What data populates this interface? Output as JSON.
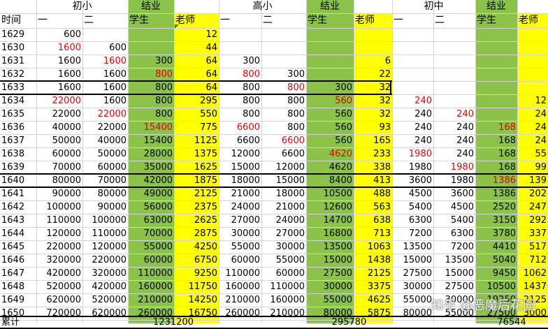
{
  "watermark": "知乎 @恶魔后花园",
  "colors": {
    "green": "#8bc34a",
    "yellow": "#ffff00",
    "red": "#e00000",
    "grid": "#d4d4d4"
  },
  "header_row1": [
    "",
    "初小",
    "",
    "结业",
    "",
    "",
    "高小",
    "",
    "结业",
    "",
    "",
    "初中",
    "",
    "结业",
    ""
  ],
  "header_row2": [
    "时间",
    "一",
    "二",
    "学生",
    "老师",
    "一",
    "二",
    "学生",
    "老师",
    "一",
    "二",
    "学生",
    "老师"
  ],
  "rows": [
    {
      "year": "1629",
      "c": [
        "600",
        "",
        "",
        "12",
        "",
        "",
        "",
        "",
        "",
        "",
        "",
        ""
      ]
    },
    {
      "year": "1630",
      "c": [
        "1600",
        "600",
        "",
        "44",
        "",
        "",
        "",
        "",
        "",
        "",
        "",
        ""
      ]
    },
    {
      "year": "1631",
      "c": [
        "1600",
        "1600",
        "300",
        "64",
        "300",
        "",
        "",
        "6",
        "",
        "",
        "",
        ""
      ]
    },
    {
      "year": "1632",
      "c": [
        "1600",
        "1600",
        "800",
        "64",
        "800",
        "300",
        "",
        "22",
        "",
        "",
        "",
        ""
      ]
    },
    {
      "year": "1633",
      "c": [
        "1600",
        "1600",
        "800",
        "64",
        "800",
        "800",
        "300",
        "32",
        "",
        "",
        "",
        ""
      ]
    },
    {
      "year": "1634",
      "c": [
        "22000",
        "1600",
        "800",
        "295",
        "800",
        "800",
        "560",
        "32",
        "240",
        "",
        "",
        "12"
      ]
    },
    {
      "year": "1635",
      "c": [
        "22000",
        "22000",
        "800",
        "550",
        "800",
        "800",
        "560",
        "32",
        "240",
        "240",
        "",
        "24"
      ]
    },
    {
      "year": "1636",
      "c": [
        "40000",
        "22000",
        "15400",
        "775",
        "6600",
        "800",
        "560",
        "93",
        "240",
        "240",
        "168",
        "24"
      ]
    },
    {
      "year": "1637",
      "c": [
        "50000",
        "40000",
        "15400",
        "1125",
        "6600",
        "6600",
        "560",
        "165",
        "240",
        "240",
        "168",
        "24"
      ]
    },
    {
      "year": "1638",
      "c": [
        "60000",
        "50000",
        "28000",
        "1375",
        "12000",
        "6600",
        "4620",
        "233",
        "1980",
        "240",
        "168",
        "55"
      ]
    },
    {
      "year": "1639",
      "c": [
        "70000",
        "60000",
        "35000",
        "1625",
        "15000",
        "12000",
        "4620",
        "338",
        "1980",
        "1980",
        "168",
        "99"
      ]
    },
    {
      "year": "1640",
      "c": [
        "80000",
        "70000",
        "42000",
        "1875",
        "18000",
        "15000",
        "8400",
        "413",
        "3600",
        "1980",
        "1386",
        "139"
      ]
    },
    {
      "year": "1641",
      "c": [
        "90000",
        "80000",
        "49000",
        "2125",
        "21000",
        "18000",
        "10500",
        "488",
        "4500",
        "3600",
        "1386",
        "202"
      ]
    },
    {
      "year": "1642",
      "c": [
        "100000",
        "90000",
        "56000",
        "2375",
        "24000",
        "21000",
        "12600",
        "563",
        "5400",
        "4500",
        "2520",
        "247"
      ]
    },
    {
      "year": "1643",
      "c": [
        "110000",
        "100000",
        "63000",
        "2625",
        "27000",
        "24000",
        "14700",
        "638",
        "6300",
        "5400",
        "3150",
        "292"
      ]
    },
    {
      "year": "1644",
      "c": [
        "120000",
        "110000",
        "70000",
        "2875",
        "30000",
        "27000",
        "16800",
        "713",
        "7200",
        "6300",
        "3780",
        "337"
      ]
    },
    {
      "year": "1645",
      "c": [
        "220000",
        "120000",
        "55000",
        "4250",
        "55000",
        "30000",
        "13500",
        "1063",
        "13500",
        "7200",
        "4410",
        "517"
      ]
    },
    {
      "year": "1646",
      "c": [
        "320000",
        "220000",
        "60000",
        "6750",
        "60000",
        "55000",
        "15000",
        "1438",
        "15000",
        "13500",
        "5040",
        "712"
      ]
    },
    {
      "year": "1647",
      "c": [
        "420000",
        "320000",
        "110000",
        "9250",
        "110000",
        "60000",
        "27500",
        "2125",
        "27500",
        "15000",
        "9450",
        "1062"
      ]
    },
    {
      "year": "1648",
      "c": [
        "520000",
        "420000",
        "160000",
        "11750",
        "160000",
        "110000",
        "30000",
        "3375",
        "30000",
        "27500",
        "10500",
        "1437"
      ]
    },
    {
      "year": "1649",
      "c": [
        "620000",
        "520000",
        "210000",
        "14250",
        "210000",
        "160000",
        "55000",
        "4625",
        "55000",
        "30000",
        "19250",
        "2125"
      ]
    },
    {
      "year": "1650",
      "c": [
        "720000",
        "620000",
        "260000",
        "16750",
        "260000",
        "210000",
        "80000",
        "5875",
        "80000",
        "55000",
        "27500",
        "3000"
      ]
    }
  ],
  "red_cells": [
    {
      "year": "1630",
      "col": 0
    },
    {
      "year": "1631",
      "col": 1
    },
    {
      "year": "1632",
      "col": 2
    },
    {
      "year": "1632",
      "col": 4
    },
    {
      "year": "1633",
      "col": 5
    },
    {
      "year": "1634",
      "col": 0
    },
    {
      "year": "1634",
      "col": 6
    },
    {
      "year": "1634",
      "col": 8
    },
    {
      "year": "1635",
      "col": 1
    },
    {
      "year": "1635",
      "col": 9
    },
    {
      "year": "1636",
      "col": 2
    },
    {
      "year": "1636",
      "col": 4
    },
    {
      "year": "1636",
      "col": 10
    },
    {
      "year": "1637",
      "col": 5
    },
    {
      "year": "1638",
      "col": 6
    },
    {
      "year": "1638",
      "col": 8
    },
    {
      "year": "1639",
      "col": 9
    },
    {
      "year": "1640",
      "col": 10
    }
  ],
  "totals": {
    "label": "累计",
    "g1": "1231200",
    "g2": "295780",
    "g3": "76544"
  }
}
